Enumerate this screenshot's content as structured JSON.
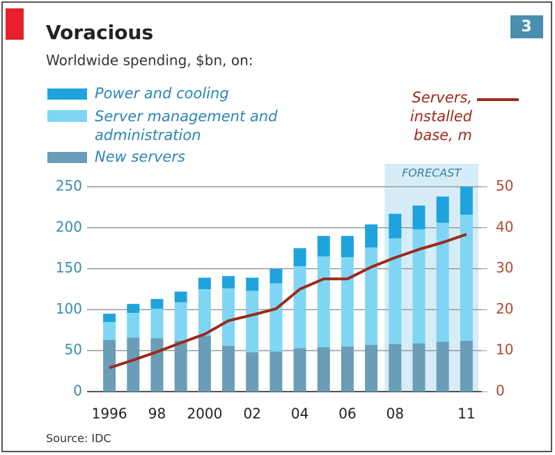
{
  "chart_data": {
    "type": "bar",
    "title": "Voracious",
    "subtitle": "Worldwide spending, $bn, on:",
    "source": "Source: IDC",
    "badge": "3",
    "annotation": "FORECAST",
    "categories": [
      "1996",
      null,
      "98",
      null,
      "2000",
      null,
      "02",
      null,
      "04",
      null,
      "06",
      null,
      "08",
      null,
      null,
      "11"
    ],
    "stacked": true,
    "series": [
      {
        "name": "Power and cooling",
        "color": "#1fa3dd",
        "values": [
          10,
          11,
          12,
          13,
          14,
          15,
          16,
          18,
          22,
          25,
          26,
          28,
          30,
          29,
          32,
          34
        ]
      },
      {
        "name": "Server management and administration",
        "color": "#7fd6f4",
        "values": [
          22,
          30,
          36,
          47,
          57,
          70,
          75,
          83,
          100,
          111,
          109,
          119,
          129,
          139,
          145,
          154
        ]
      },
      {
        "name": "New servers",
        "color": "#6a9db8",
        "values": [
          63,
          66,
          65,
          62,
          68,
          56,
          48,
          49,
          53,
          54,
          55,
          57,
          58,
          59,
          61,
          62
        ]
      },
      {
        "name": "Servers, installed base, m",
        "color": "#9b2b1e",
        "type": "line",
        "axis": "y2",
        "values": [
          5.8,
          7.7,
          9.7,
          11.9,
          14,
          17.3,
          18.7,
          20.2,
          25,
          27.5,
          27.5,
          30.4,
          32.7,
          34.7,
          36.4,
          38.4
        ]
      }
    ],
    "ylim": [
      0,
      250
    ],
    "yticks": [
      0,
      50,
      100,
      150,
      200,
      250
    ],
    "y2lim": [
      0,
      50
    ],
    "y2ticks": [
      0,
      10,
      20,
      30,
      40,
      50
    ],
    "grid": true
  }
}
